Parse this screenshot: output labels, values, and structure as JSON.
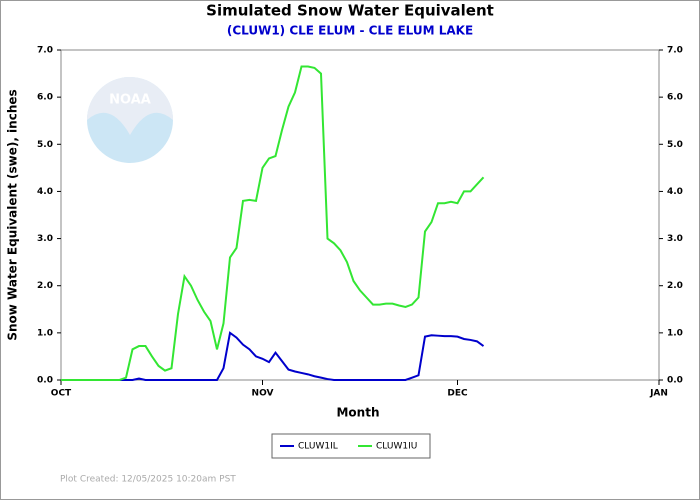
{
  "chart_data": {
    "type": "line",
    "title": "Simulated Snow Water Equivalent",
    "subtitle": "(CLUW1) CLE ELUM - CLE ELUM LAKE",
    "x_label": "Month",
    "y_label": "Snow Water Equivalent (swe),  inches",
    "logo_text": "NOAA",
    "footer": "Plot Created: 12/05/2025 10:20am PST",
    "x": [
      0,
      1,
      2,
      3,
      4,
      5,
      6,
      7,
      8,
      9,
      10,
      11,
      12,
      13,
      14,
      15,
      16,
      17,
      18,
      19,
      20,
      21,
      22,
      23,
      24,
      25,
      26,
      27,
      28,
      29,
      30,
      31,
      32,
      33,
      34,
      35,
      36,
      37,
      38,
      39,
      40,
      41,
      42,
      43,
      44,
      45,
      46,
      47,
      48,
      49,
      50,
      51,
      52,
      53,
      54,
      55,
      56,
      57,
      58,
      59,
      60,
      61,
      62,
      63,
      64,
      65
    ],
    "xlim": [
      0,
      92
    ],
    "xticks": [
      {
        "value": 0,
        "label": "OCT"
      },
      {
        "value": 31,
        "label": "NOV"
      },
      {
        "value": 61,
        "label": "DEC"
      },
      {
        "value": 92,
        "label": "JAN"
      }
    ],
    "ylim": [
      0,
      7
    ],
    "yticks": [
      {
        "value": 0,
        "label": "0.0"
      },
      {
        "value": 1,
        "label": "1.0"
      },
      {
        "value": 2,
        "label": "2.0"
      },
      {
        "value": 3,
        "label": "3.0"
      },
      {
        "value": 4,
        "label": "4.0"
      },
      {
        "value": 5,
        "label": "5.0"
      },
      {
        "value": 6,
        "label": "6.0"
      },
      {
        "value": 7,
        "label": "7.0"
      }
    ],
    "y2lim": [
      0,
      7
    ],
    "y2ticks": [
      {
        "value": 0,
        "label": "0.0"
      },
      {
        "value": 1,
        "label": "1.0"
      },
      {
        "value": 2,
        "label": "2.0"
      },
      {
        "value": 3,
        "label": "3.0"
      },
      {
        "value": 4,
        "label": "4.0"
      },
      {
        "value": 5,
        "label": "5.0"
      },
      {
        "value": 6,
        "label": "6.0"
      },
      {
        "value": 7,
        "label": "7.0"
      }
    ],
    "series": [
      {
        "name": "CLUW1IL",
        "color": "#0000cc",
        "values": [
          0,
          0,
          0,
          0,
          0,
          0,
          0,
          0,
          0,
          0,
          0,
          0,
          0.03,
          0,
          0,
          0,
          0,
          0,
          0,
          0,
          0,
          0,
          0,
          0,
          0,
          0.25,
          1.0,
          0.9,
          0.75,
          0.65,
          0.5,
          0.45,
          0.38,
          0.58,
          0.4,
          0.22,
          0.18,
          0.15,
          0.12,
          0.08,
          0.05,
          0.02,
          0,
          0,
          0,
          0,
          0,
          0,
          0,
          0,
          0,
          0,
          0,
          0,
          0.05,
          0.1,
          0.92,
          0.95,
          0.94,
          0.93,
          0.93,
          0.92,
          0.87,
          0.85,
          0.82,
          0.72
        ]
      },
      {
        "name": "CLUW1IU",
        "color": "#33e633",
        "values": [
          0,
          0,
          0,
          0,
          0,
          0,
          0,
          0,
          0,
          0,
          0.05,
          0.65,
          0.72,
          0.72,
          0.5,
          0.3,
          0.2,
          0.25,
          1.4,
          2.2,
          2.0,
          1.7,
          1.45,
          1.25,
          0.65,
          1.2,
          2.6,
          2.8,
          3.8,
          3.82,
          3.8,
          4.5,
          4.7,
          4.75,
          5.3,
          5.8,
          6.1,
          6.65,
          6.65,
          6.62,
          6.5,
          3.0,
          2.9,
          2.75,
          2.5,
          2.1,
          1.9,
          1.75,
          1.6,
          1.6,
          1.62,
          1.62,
          1.58,
          1.55,
          1.6,
          1.75,
          3.15,
          3.35,
          3.75,
          3.75,
          3.78,
          3.75,
          4.0,
          4.0,
          4.15,
          4.3
        ]
      }
    ]
  }
}
